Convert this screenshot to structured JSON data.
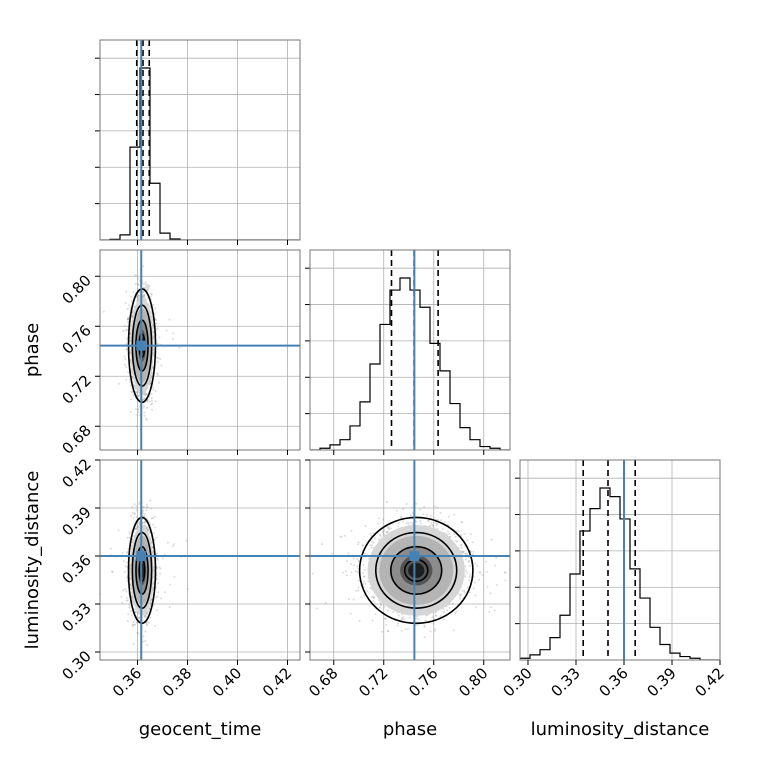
{
  "chart_data": {
    "type": "corner",
    "title": "",
    "parameters": [
      "geocent_time",
      "phase",
      "luminosity_distance"
    ],
    "axis_labels": {
      "geocent_time": "geocent_time",
      "phase": "phase",
      "luminosity_distance": "luminosity_distance"
    },
    "ranges": {
      "geocent_time": [
        0.345,
        0.425
      ],
      "phase": [
        0.661,
        0.821
      ],
      "luminosity_distance": [
        0.295,
        0.42
      ]
    },
    "ticks": {
      "geocent_time": {
        "values": [
          0.36,
          0.38,
          0.4,
          0.42
        ],
        "labels": [
          "0.36",
          "0.38",
          "0.40",
          "0.42"
        ]
      },
      "phase": {
        "values": [
          0.68,
          0.72,
          0.76,
          0.8
        ],
        "labels": [
          "0.68",
          "0.72",
          "0.76",
          "0.80"
        ]
      },
      "luminosity_distance": {
        "values": [
          0.3,
          0.33,
          0.36,
          0.39,
          0.42
        ],
        "labels": [
          "0.30",
          "0.33",
          "0.36",
          "0.39",
          "0.42"
        ]
      }
    },
    "truths": {
      "geocent_time": 0.3615,
      "phase": 0.7445,
      "luminosity_distance": 0.36
    },
    "quantiles": {
      "geocent_time": [
        0.3597,
        0.3622,
        0.3647
      ],
      "phase": [
        0.7262,
        0.7443,
        0.7635
      ],
      "luminosity_distance": [
        0.3345,
        0.35,
        0.367
      ]
    },
    "histograms": {
      "geocent_time": {
        "bin_edges": [
          0.345,
          0.349,
          0.353,
          0.357,
          0.361,
          0.365,
          0.369,
          0.373,
          0.377,
          0.381,
          0.385,
          0.389,
          0.393,
          0.397,
          0.401,
          0.405,
          0.409,
          0.413,
          0.417,
          0.421,
          0.425
        ],
        "heights": [
          0,
          0.004,
          0.03,
          0.54,
          1.0,
          0.33,
          0.04,
          0.006,
          0,
          0,
          0,
          0,
          0,
          0,
          0,
          0,
          0,
          0,
          0,
          0
        ]
      },
      "phase": {
        "bin_edges": [
          0.661,
          0.669,
          0.677,
          0.685,
          0.693,
          0.701,
          0.709,
          0.717,
          0.725,
          0.733,
          0.741,
          0.749,
          0.757,
          0.765,
          0.773,
          0.781,
          0.789,
          0.797,
          0.805,
          0.813,
          0.821
        ],
        "heights": [
          0,
          0.01,
          0.03,
          0.06,
          0.14,
          0.28,
          0.5,
          0.73,
          0.93,
          1.0,
          0.93,
          0.83,
          0.62,
          0.46,
          0.27,
          0.13,
          0.06,
          0.02,
          0.01,
          0
        ]
      },
      "luminosity_distance": {
        "bin_edges": [
          0.295,
          0.30125,
          0.3075,
          0.31375,
          0.32,
          0.32625,
          0.3325,
          0.33875,
          0.345,
          0.35125,
          0.3575,
          0.36375,
          0.37,
          0.37625,
          0.3825,
          0.38875,
          0.395,
          0.40125,
          0.4075,
          0.41375,
          0.42
        ],
        "heights": [
          0.01,
          0.03,
          0.06,
          0.13,
          0.26,
          0.5,
          0.75,
          0.88,
          1.0,
          0.95,
          0.82,
          0.53,
          0.36,
          0.19,
          0.09,
          0.04,
          0.02,
          0.01,
          0,
          0
        ]
      }
    },
    "contours": {
      "phase_vs_geocent_time": {
        "center": [
          0.3618,
          0.7445
        ],
        "sigma": [
          0.0022,
          0.0185
        ]
      },
      "luminosity_distance_vs_geocent_time": {
        "center": [
          0.3618,
          0.351
        ],
        "sigma": [
          0.0022,
          0.0135
        ]
      },
      "luminosity_distance_vs_phase": {
        "center": [
          0.746,
          0.351
        ],
        "sigma": [
          0.0185,
          0.0135
        ]
      }
    },
    "grid": true,
    "colors": {
      "truth": "#4682b4",
      "histogram": "#000000",
      "grid": "#b0b0b0",
      "spine": "#777777",
      "scatter": "#9a9a9a"
    }
  }
}
